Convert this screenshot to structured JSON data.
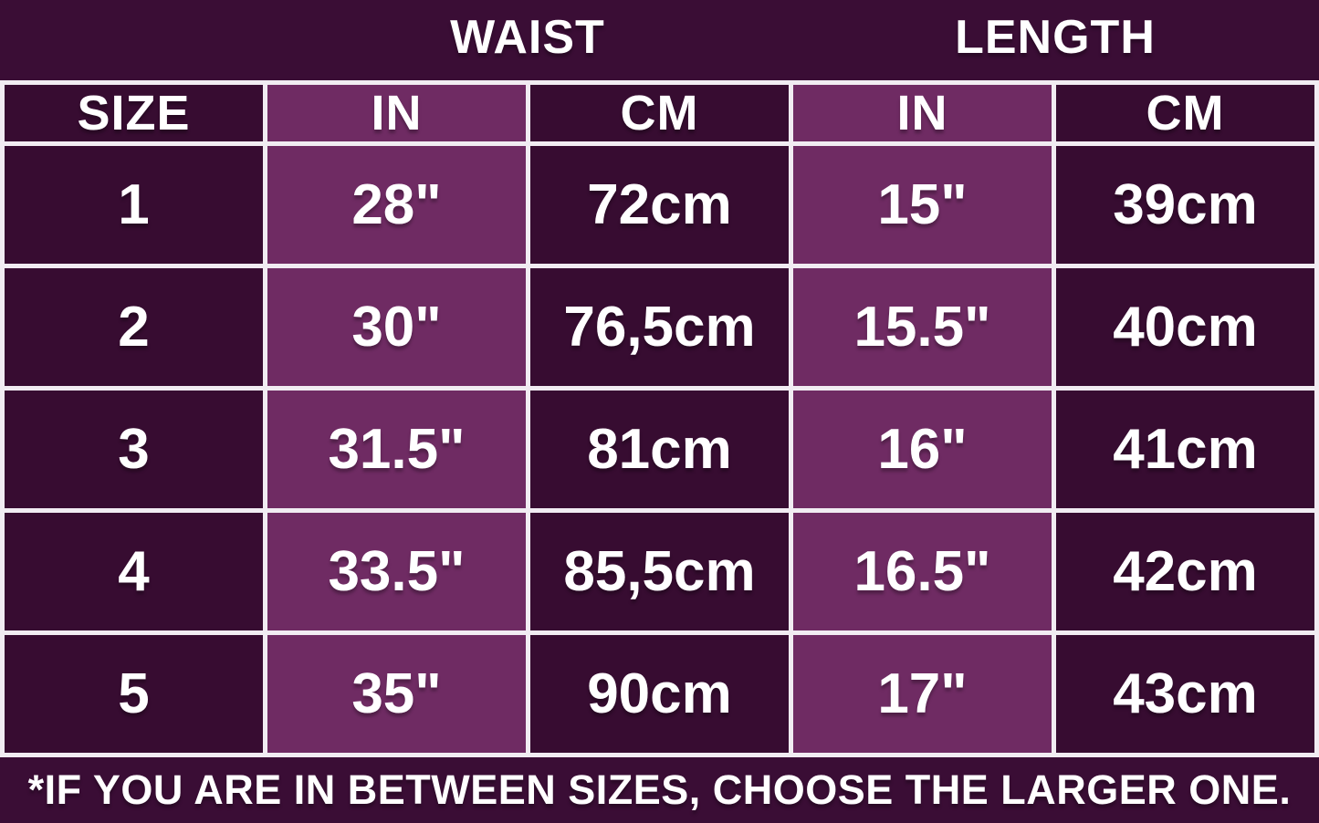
{
  "colors": {
    "background": "#3A0D35",
    "cell_dark": "#370C31",
    "cell_light": "#6F2B63",
    "border": "#F1ECF2",
    "text": "#FFFFFF"
  },
  "chart_data": {
    "type": "table",
    "title": "",
    "column_groups": [
      "",
      "WAIST",
      "LENGTH"
    ],
    "columns": [
      "SIZE",
      "IN",
      "CM",
      "IN",
      "CM"
    ],
    "rows": [
      [
        "1",
        "28\"",
        "72cm",
        "15\"",
        "39cm"
      ],
      [
        "2",
        "30\"",
        "76,5cm",
        "15.5\"",
        "40cm"
      ],
      [
        "3",
        "31.5\"",
        "81cm",
        "16\"",
        "41cm"
      ],
      [
        "4",
        "33.5\"",
        "85,5cm",
        "16.5\"",
        "42cm"
      ],
      [
        "5",
        "35\"",
        "90cm",
        "17\"",
        "43cm"
      ]
    ],
    "footnote": "*IF YOU ARE IN BETWEEN SIZES, CHOOSE THE LARGER ONE.",
    "layout": {
      "highlighted_columns": [
        "IN",
        "IN"
      ],
      "grid": "on",
      "legend": "none"
    }
  }
}
